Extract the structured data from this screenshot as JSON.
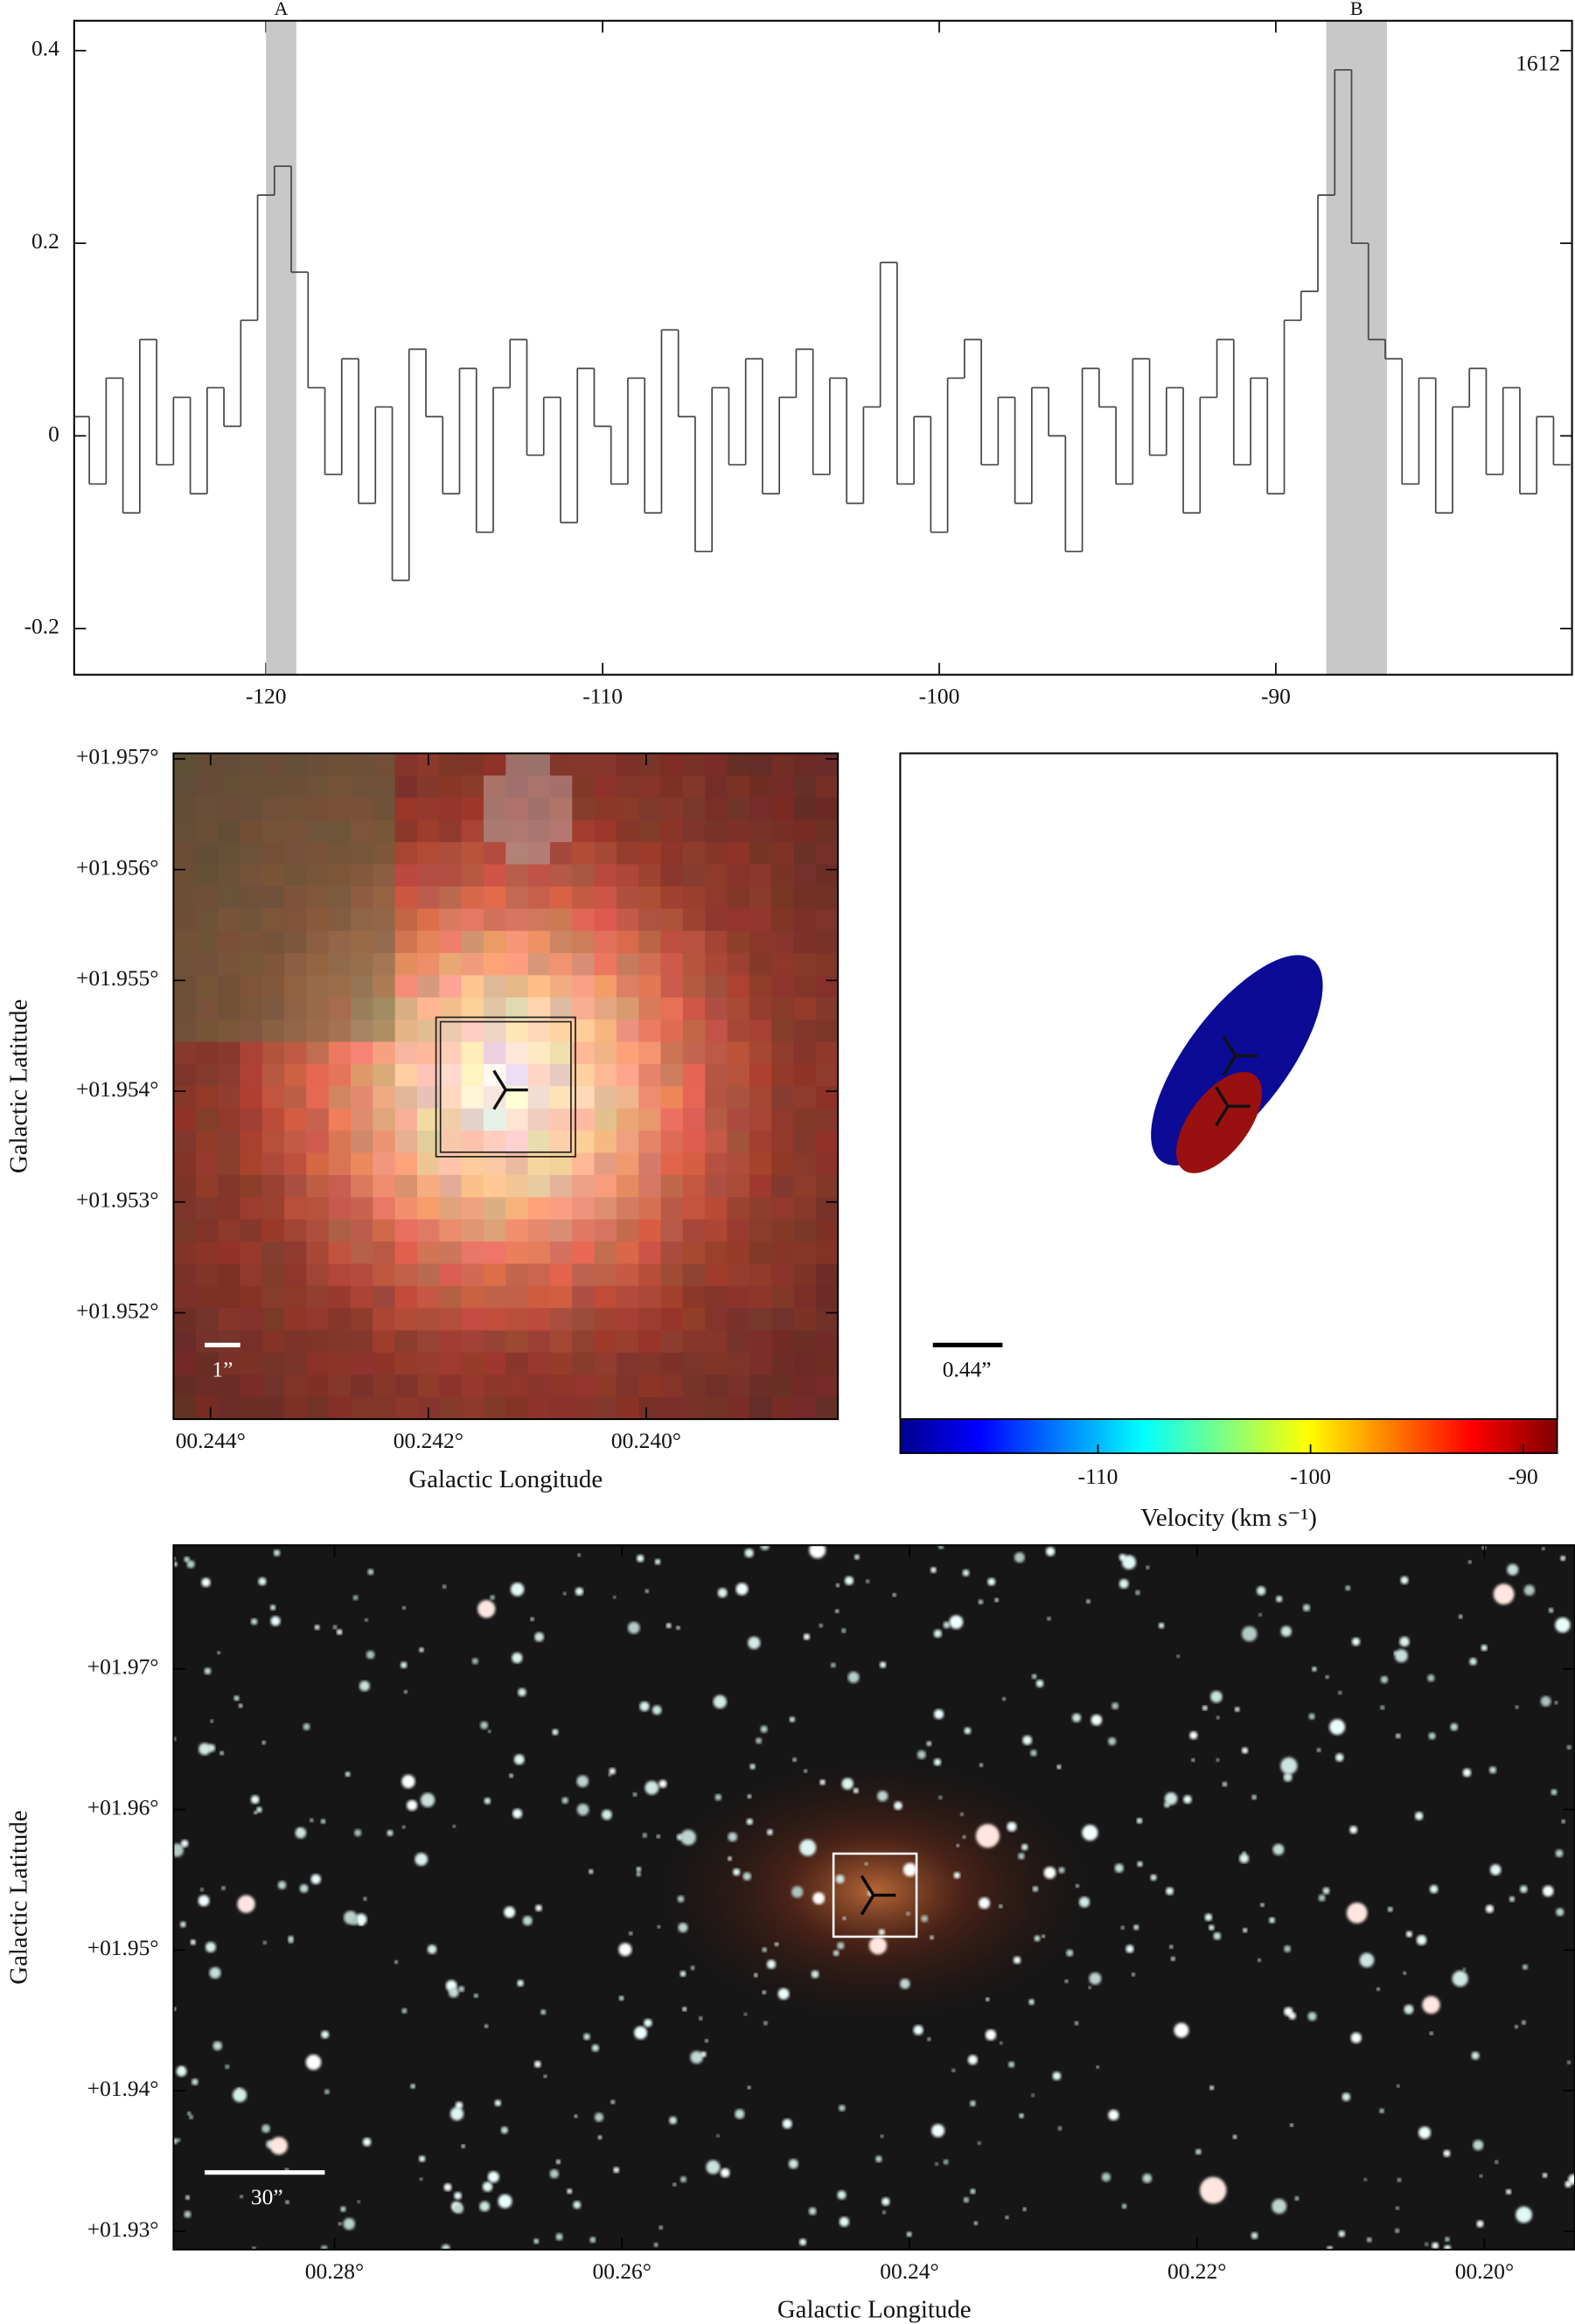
{
  "chart_data": [
    {
      "type": "line",
      "label": "1612",
      "bands": [
        {
          "label": "A",
          "xmin": -120,
          "xmax": -119.1
        },
        {
          "label": "B",
          "xmin": -88.5,
          "xmax": -86.7
        }
      ],
      "x": [
        -125.5,
        -125,
        -124.5,
        -124,
        -123.5,
        -123,
        -122.5,
        -122,
        -121.5,
        -121,
        -120.5,
        -120,
        -119.5,
        -119,
        -118.5,
        -118,
        -117.5,
        -117,
        -116.5,
        -116,
        -115.5,
        -115,
        -114.5,
        -114,
        -113.5,
        -113,
        -112.5,
        -112,
        -111.5,
        -111,
        -110.5,
        -110,
        -109.5,
        -109,
        -108.5,
        -108,
        -107.5,
        -107,
        -106.5,
        -106,
        -105.5,
        -105,
        -104.5,
        -104,
        -103.5,
        -103,
        -102.5,
        -102,
        -101.5,
        -101,
        -100.5,
        -100,
        -99.5,
        -99,
        -98.5,
        -98,
        -97.5,
        -97,
        -96.5,
        -96,
        -95.5,
        -95,
        -94.5,
        -94,
        -93.5,
        -93,
        -92.5,
        -92,
        -91.5,
        -91,
        -90.5,
        -90,
        -89.5,
        -89,
        -88.5,
        -88,
        -87.5,
        -87,
        -86.5,
        -86,
        -85.5,
        -85,
        -84.5,
        -84,
        -83.5,
        -83,
        -82.5,
        -82,
        -81.5
      ],
      "values": [
        0.02,
        -0.05,
        0.06,
        -0.08,
        0.1,
        -0.03,
        0.04,
        -0.06,
        0.05,
        0.01,
        0.12,
        0.25,
        0.28,
        0.17,
        0.05,
        -0.04,
        0.08,
        -0.07,
        0.03,
        -0.15,
        0.09,
        0.02,
        -0.06,
        0.07,
        -0.1,
        0.05,
        0.1,
        -0.02,
        0.04,
        -0.09,
        0.07,
        0.01,
        -0.05,
        0.06,
        -0.08,
        0.11,
        0.02,
        -0.12,
        0.05,
        -0.03,
        0.08,
        -0.06,
        0.04,
        0.09,
        -0.04,
        0.06,
        -0.07,
        0.03,
        0.18,
        -0.05,
        0.02,
        -0.1,
        0.06,
        0.1,
        -0.03,
        0.04,
        -0.07,
        0.05,
        0,
        -0.12,
        0.07,
        0.03,
        -0.05,
        0.08,
        -0.02,
        0.05,
        -0.08,
        0.04,
        0.1,
        -0.03,
        0.06,
        -0.06,
        0.12,
        0.15,
        0.25,
        0.38,
        0.2,
        0.1,
        0.08,
        -0.05,
        0.06,
        -0.08,
        0.03,
        0.07,
        -0.04,
        0.05,
        -0.06,
        0.02,
        -0.03
      ],
      "color": "#444444",
      "band_color": "#c8c8c8",
      "xlim": [
        -125.7,
        -81.2
      ],
      "ylim": [
        -0.248,
        0.431
      ],
      "xticks": [
        -120,
        -110,
        -100,
        -90
      ],
      "yticks": [
        -0.2,
        0,
        0.2,
        0.4
      ]
    },
    {
      "type": "image",
      "xlabel": "Galactic Longitude",
      "ylabel": "Galactic Latitude",
      "scalebar": "1”",
      "xlim": [
        0.24434,
        0.23824
      ],
      "ylim": [
        1.95104,
        1.95705
      ],
      "xticks": [
        {
          "value": 0.244,
          "label": "00.244°"
        },
        {
          "value": 0.242,
          "label": "00.242°"
        },
        {
          "value": 0.24,
          "label": "00.240°"
        }
      ],
      "yticks": [
        {
          "value": 1.957,
          "label": "+01.957°"
        },
        {
          "value": 1.956,
          "label": "+01.956°"
        },
        {
          "value": 1.955,
          "label": "+01.955°"
        },
        {
          "value": 1.954,
          "label": "+01.954°"
        },
        {
          "value": 1.953,
          "label": "+01.953°"
        },
        {
          "value": 1.952,
          "label": "+01.952°"
        }
      ]
    },
    {
      "type": "ellipse",
      "scalebar": "0.44”",
      "colorbar": {
        "label": "Velocity (km s⁻¹)",
        "lim": [
          -119.3,
          -88.4
        ],
        "ticks": [
          -110,
          -100,
          -90
        ]
      }
    },
    {
      "type": "image",
      "xlabel": "Galactic Longitude",
      "ylabel": "Galactic Latitude",
      "scalebar": "30”",
      "xlim": [
        0.2912,
        0.1937
      ],
      "ylim": [
        1.9287,
        1.9788
      ],
      "xticks": [
        {
          "value": 0.28,
          "label": "00.28°"
        },
        {
          "value": 0.26,
          "label": "00.26°"
        },
        {
          "value": 0.24,
          "label": "00.24°"
        },
        {
          "value": 0.22,
          "label": "00.22°"
        },
        {
          "value": 0.2,
          "label": "00.20°"
        }
      ],
      "yticks": [
        {
          "value": 1.97,
          "label": "+01.97°"
        },
        {
          "value": 1.96,
          "label": "+01.96°"
        },
        {
          "value": 1.95,
          "label": "+01.95°"
        },
        {
          "value": 1.94,
          "label": "+01.94°"
        },
        {
          "value": 1.93,
          "label": "+01.93°"
        }
      ]
    }
  ]
}
